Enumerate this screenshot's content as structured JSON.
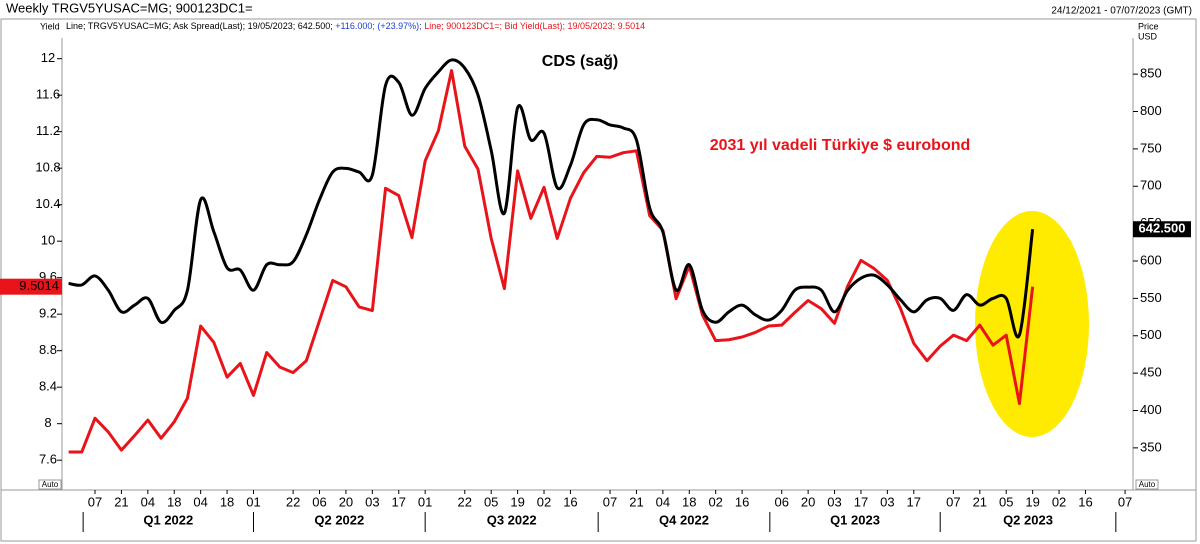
{
  "chart_data": {
    "type": "line",
    "title": "Weekly TRGV5YUSAC=MG; 900123DC1=",
    "date_range": "24/12/2021 - 07/07/2023 (GMT)",
    "y_label": "Yield",
    "y2_label": [
      "Price",
      "USD"
    ],
    "scale_mode": "Auto",
    "annotations": [
      "CDS (sağ)",
      "2031 yıl vadeli Türkiye $ eurobond"
    ],
    "quarters": [
      "Q1 2022",
      "Q2 2022",
      "Q3 2022",
      "Q4 2022",
      "Q1 2023",
      "Q2 2023"
    ],
    "categories": [
      null,
      null,
      "07",
      null,
      "21",
      null,
      "04",
      null,
      "18",
      null,
      "04",
      null,
      "18",
      null,
      "01",
      null,
      null,
      "22",
      null,
      "06",
      null,
      "20",
      null,
      "03",
      null,
      "17",
      null,
      "01",
      null,
      null,
      "22",
      null,
      "05",
      null,
      "19",
      null,
      "02",
      null,
      "16",
      null,
      null,
      "07",
      null,
      "21",
      null,
      "04",
      null,
      "18",
      null,
      "02",
      null,
      "16",
      null,
      null,
      "06",
      null,
      "20",
      null,
      "03",
      null,
      "17",
      null,
      "03",
      null,
      "17",
      null,
      null,
      "07",
      null,
      "21",
      null,
      "05",
      null,
      "19",
      null,
      "02",
      null,
      "16",
      null,
      null,
      "07"
    ],
    "ylim": [
      7.35,
      12.15
    ],
    "yticks": [
      7.6,
      8,
      8.4,
      8.8,
      9.2,
      9.6,
      10,
      10.4,
      10.8,
      11.2,
      11.6,
      12
    ],
    "y2lim": [
      303,
      889
    ],
    "y2ticks": [
      350,
      400,
      450,
      500,
      550,
      600,
      650,
      700,
      750,
      800,
      850
    ],
    "series": [
      {
        "name": "Line; TRGV5YUSAC=MG; Ask Spread(Last); 19/05/2023; 642.500;",
        "change": "+116.000; (+23.97%);",
        "color": "#000000",
        "axis": "y2",
        "smooth": true,
        "last_label": "642.500",
        "values": [
          570,
          568,
          580,
          561,
          532,
          541,
          550,
          518,
          534,
          561,
          682,
          639,
          591,
          588,
          561,
          595,
          595,
          599,
          635,
          682,
          719,
          724,
          719,
          715,
          835,
          839,
          795,
          831,
          853,
          869,
          858,
          822,
          748,
          664,
          805,
          762,
          771,
          698,
          728,
          782,
          789,
          782,
          778,
          762,
          671,
          639,
          561,
          595,
          534,
          518,
          532,
          541,
          528,
          521,
          534,
          561,
          565,
          561,
          532,
          561,
          577,
          581,
          568,
          548,
          532,
          548,
          550,
          534,
          555,
          541,
          550,
          550,
          501,
          642.5,
          null,
          null,
          null,
          null,
          null,
          null,
          null
        ]
      },
      {
        "name": "Line; 900123DC1=; Bid Yield(Last); 19/05/2023; 9.5014",
        "color": "#e8141a",
        "axis": "y",
        "smooth": false,
        "last_label": "9.5014",
        "values": [
          7.69,
          7.69,
          8.06,
          7.91,
          7.71,
          7.87,
          8.04,
          7.84,
          8.02,
          8.28,
          9.07,
          8.89,
          8.51,
          8.66,
          8.31,
          8.78,
          8.62,
          8.56,
          8.69,
          9.13,
          9.57,
          9.5,
          9.28,
          9.24,
          10.58,
          10.5,
          10.04,
          10.88,
          11.21,
          11.87,
          11.04,
          10.79,
          10.03,
          9.48,
          10.77,
          10.25,
          10.59,
          10.03,
          10.47,
          10.75,
          10.93,
          10.92,
          10.97,
          10.99,
          10.28,
          10.12,
          9.37,
          9.73,
          9.19,
          8.91,
          8.92,
          8.95,
          9.0,
          9.07,
          9.08,
          9.22,
          9.35,
          9.26,
          9.1,
          9.51,
          9.79,
          9.7,
          9.57,
          9.26,
          8.88,
          8.69,
          8.85,
          8.97,
          8.91,
          9.08,
          8.86,
          8.97,
          8.22,
          9.5014,
          null,
          null,
          null,
          null,
          null,
          null,
          null
        ]
      }
    ]
  }
}
